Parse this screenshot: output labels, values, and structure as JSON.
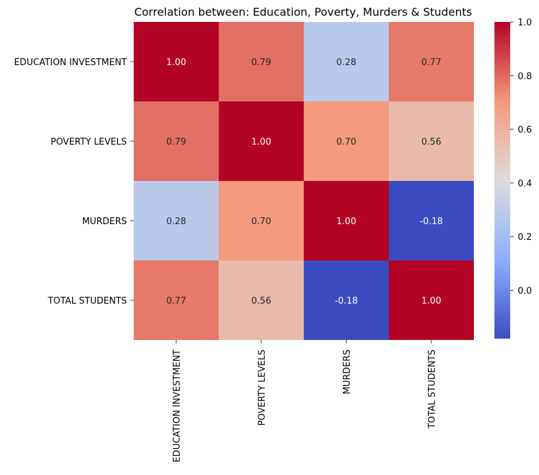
{
  "chart_data": {
    "type": "heatmap",
    "title": "Correlation between: Education, Poverty, Murders & Students",
    "xlabel": "",
    "ylabel": "",
    "row_labels": [
      "EDUCATION INVESTMENT",
      "POVERTY LEVELS",
      "MURDERS",
      "TOTAL STUDENTS"
    ],
    "col_labels": [
      "EDUCATION INVESTMENT",
      "POVERTY LEVELS",
      "MURDERS",
      "TOTAL STUDENTS"
    ],
    "values": [
      [
        1.0,
        0.79,
        0.28,
        0.77
      ],
      [
        0.79,
        1.0,
        0.7,
        0.56
      ],
      [
        0.28,
        0.7,
        1.0,
        -0.18
      ],
      [
        0.77,
        0.56,
        -0.18,
        1.0
      ]
    ],
    "annotations": [
      [
        "1.00",
        "0.79",
        "0.28",
        "0.77"
      ],
      [
        "0.79",
        "1.00",
        "0.70",
        "0.56"
      ],
      [
        "0.28",
        "0.70",
        "1.00",
        "-0.18"
      ],
      [
        "0.77",
        "0.56",
        "-0.18",
        "1.00"
      ]
    ],
    "colormap": "coolwarm",
    "vmin": -0.18,
    "vmax": 1.0,
    "colorbar_ticks": [
      "0.0",
      "0.2",
      "0.4",
      "0.6",
      "0.8",
      "1.0"
    ],
    "colorbar_tick_values": [
      0.0,
      0.2,
      0.4,
      0.6,
      0.8,
      1.0
    ],
    "grid": false,
    "colorbar_placement": "right"
  }
}
